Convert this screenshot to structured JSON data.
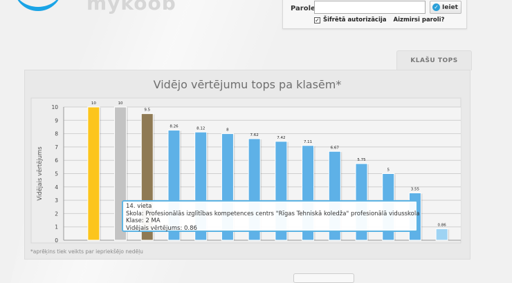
{
  "login": {
    "password_label": "Parole:",
    "password_value": "",
    "login_button": "Ieiet",
    "secure_checked": true,
    "secure_label": "Šifrētā autorizācija",
    "forgot_link": "Aizmirsi paroli?"
  },
  "tab": {
    "label": "KLAŠU TOPS"
  },
  "footnote": "*aprēķins tiek veikts par iepriekšējo nedēļu",
  "tooltip": {
    "place": "14. vieta",
    "school": "Skola: Profesionālās izglītības kompetences centrs \"Rīgas Tehniskā koledža\" profesionālā vidusskola",
    "class": "Klase: 2 MA",
    "score": "Vidējais vērtējums: 0.86"
  },
  "colors": {
    "gold": "#fcc51c",
    "silver": "#c3c3c3",
    "bronze": "#8f7a54",
    "bar": "#5eb1e7",
    "hover": "#9ed3f3"
  },
  "chart_data": {
    "type": "bar",
    "title": "Vidējo vērtējumu tops pa klasēm*",
    "ylabel": "Vidējais vērtējums",
    "xlabel": "",
    "ylim": [
      0,
      10
    ],
    "yticks": [
      0,
      1,
      2,
      3,
      4,
      5,
      6,
      7,
      8,
      9,
      10
    ],
    "grid": true,
    "values": [
      10,
      10,
      9.5,
      8.26,
      8.12,
      8,
      7.62,
      7.42,
      7.11,
      6.67,
      5.75,
      5,
      3.55,
      0.86
    ],
    "labels": [
      "10",
      "10",
      "9.5",
      "8.26",
      "8.12",
      "8",
      "7.62",
      "7.42",
      "7.11",
      "6.67",
      "5.75",
      "5",
      "3.55",
      "0.86"
    ],
    "bar_colors": [
      "gold",
      "silver",
      "bronze",
      "bar",
      "bar",
      "bar",
      "bar",
      "bar",
      "bar",
      "bar",
      "bar",
      "bar",
      "bar",
      "hover"
    ],
    "highlighted_index": 13
  }
}
